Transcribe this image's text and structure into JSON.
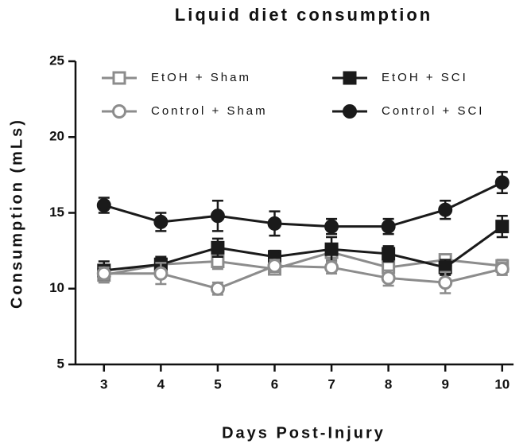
{
  "chart_data": {
    "type": "line",
    "title": "Liquid diet consumption",
    "xlabel": "Days Post-Injury",
    "ylabel": "Consumption (mLs)",
    "x": [
      3,
      4,
      5,
      6,
      7,
      8,
      9,
      10
    ],
    "xlim": [
      2.5,
      10.2
    ],
    "xticks": [
      3,
      4,
      5,
      6,
      7,
      8,
      9,
      10
    ],
    "ylim": [
      5,
      25
    ],
    "yticks": [
      5,
      10,
      15,
      20,
      25
    ],
    "series": [
      {
        "name": "EtOH + Sham",
        "color": "#8c8c8c",
        "marker": "square",
        "filled": false,
        "values": [
          10.9,
          11.6,
          11.8,
          11.3,
          12.4,
          11.4,
          11.9,
          11.5
        ],
        "errors": [
          0.5,
          0.4,
          0.5,
          0.3,
          0.5,
          0.4,
          0.3,
          0.4
        ]
      },
      {
        "name": "EtOH + SCI",
        "color": "#1a1a1a",
        "marker": "square",
        "filled": true,
        "values": [
          11.2,
          11.6,
          12.7,
          12.1,
          12.6,
          12.3,
          11.4,
          14.1
        ],
        "errors": [
          0.6,
          0.5,
          0.6,
          0.4,
          0.8,
          0.5,
          0.5,
          0.7
        ]
      },
      {
        "name": "Control + Sham",
        "color": "#8c8c8c",
        "marker": "circle",
        "filled": false,
        "values": [
          11.0,
          11.0,
          10.0,
          11.5,
          11.4,
          10.7,
          10.4,
          11.3
        ],
        "errors": [
          0.4,
          0.7,
          0.4,
          0.4,
          0.4,
          0.5,
          0.7,
          0.4
        ]
      },
      {
        "name": "Control + SCI",
        "color": "#1a1a1a",
        "marker": "circle",
        "filled": true,
        "values": [
          15.5,
          14.4,
          14.8,
          14.3,
          14.1,
          14.1,
          15.2,
          17.0
        ],
        "errors": [
          0.5,
          0.6,
          1.0,
          0.8,
          0.5,
          0.5,
          0.6,
          0.7
        ]
      }
    ]
  }
}
